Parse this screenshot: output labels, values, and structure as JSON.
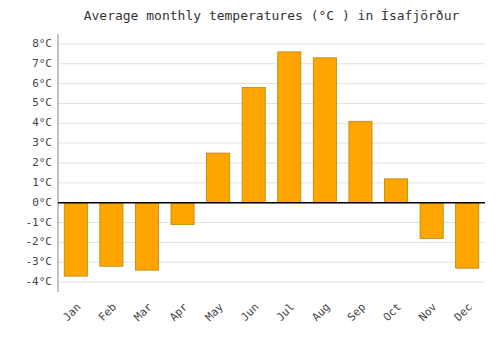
{
  "chart_data": {
    "type": "bar",
    "title": "Average monthly temperatures (°C ) in Ísafjörður",
    "categories": [
      "Jan",
      "Feb",
      "Mar",
      "Apr",
      "May",
      "Jun",
      "Jul",
      "Aug",
      "Sep",
      "Oct",
      "Nov",
      "Dec"
    ],
    "values": [
      -3.7,
      -3.2,
      -3.4,
      -1.1,
      2.5,
      5.8,
      7.6,
      7.3,
      4.1,
      1.2,
      -1.8,
      -3.3
    ],
    "color": "#FFA500",
    "ylim": [
      -4.5,
      8.5
    ],
    "yticks": [
      {
        "value": -4,
        "label": "-4°C"
      },
      {
        "value": -3,
        "label": "-3°C"
      },
      {
        "value": -2,
        "label": "-2°C"
      },
      {
        "value": -1,
        "label": "-1°C"
      },
      {
        "value": 0,
        "label": "0°C"
      },
      {
        "value": 1,
        "label": "1°C"
      },
      {
        "value": 2,
        "label": "2°C"
      },
      {
        "value": 3,
        "label": "3°C"
      },
      {
        "value": 4,
        "label": "4°C"
      },
      {
        "value": 5,
        "label": "5°C"
      },
      {
        "value": 6,
        "label": "6°C"
      },
      {
        "value": 7,
        "label": "7°C"
      },
      {
        "value": 8,
        "label": "8°C"
      }
    ],
    "grid": true
  }
}
